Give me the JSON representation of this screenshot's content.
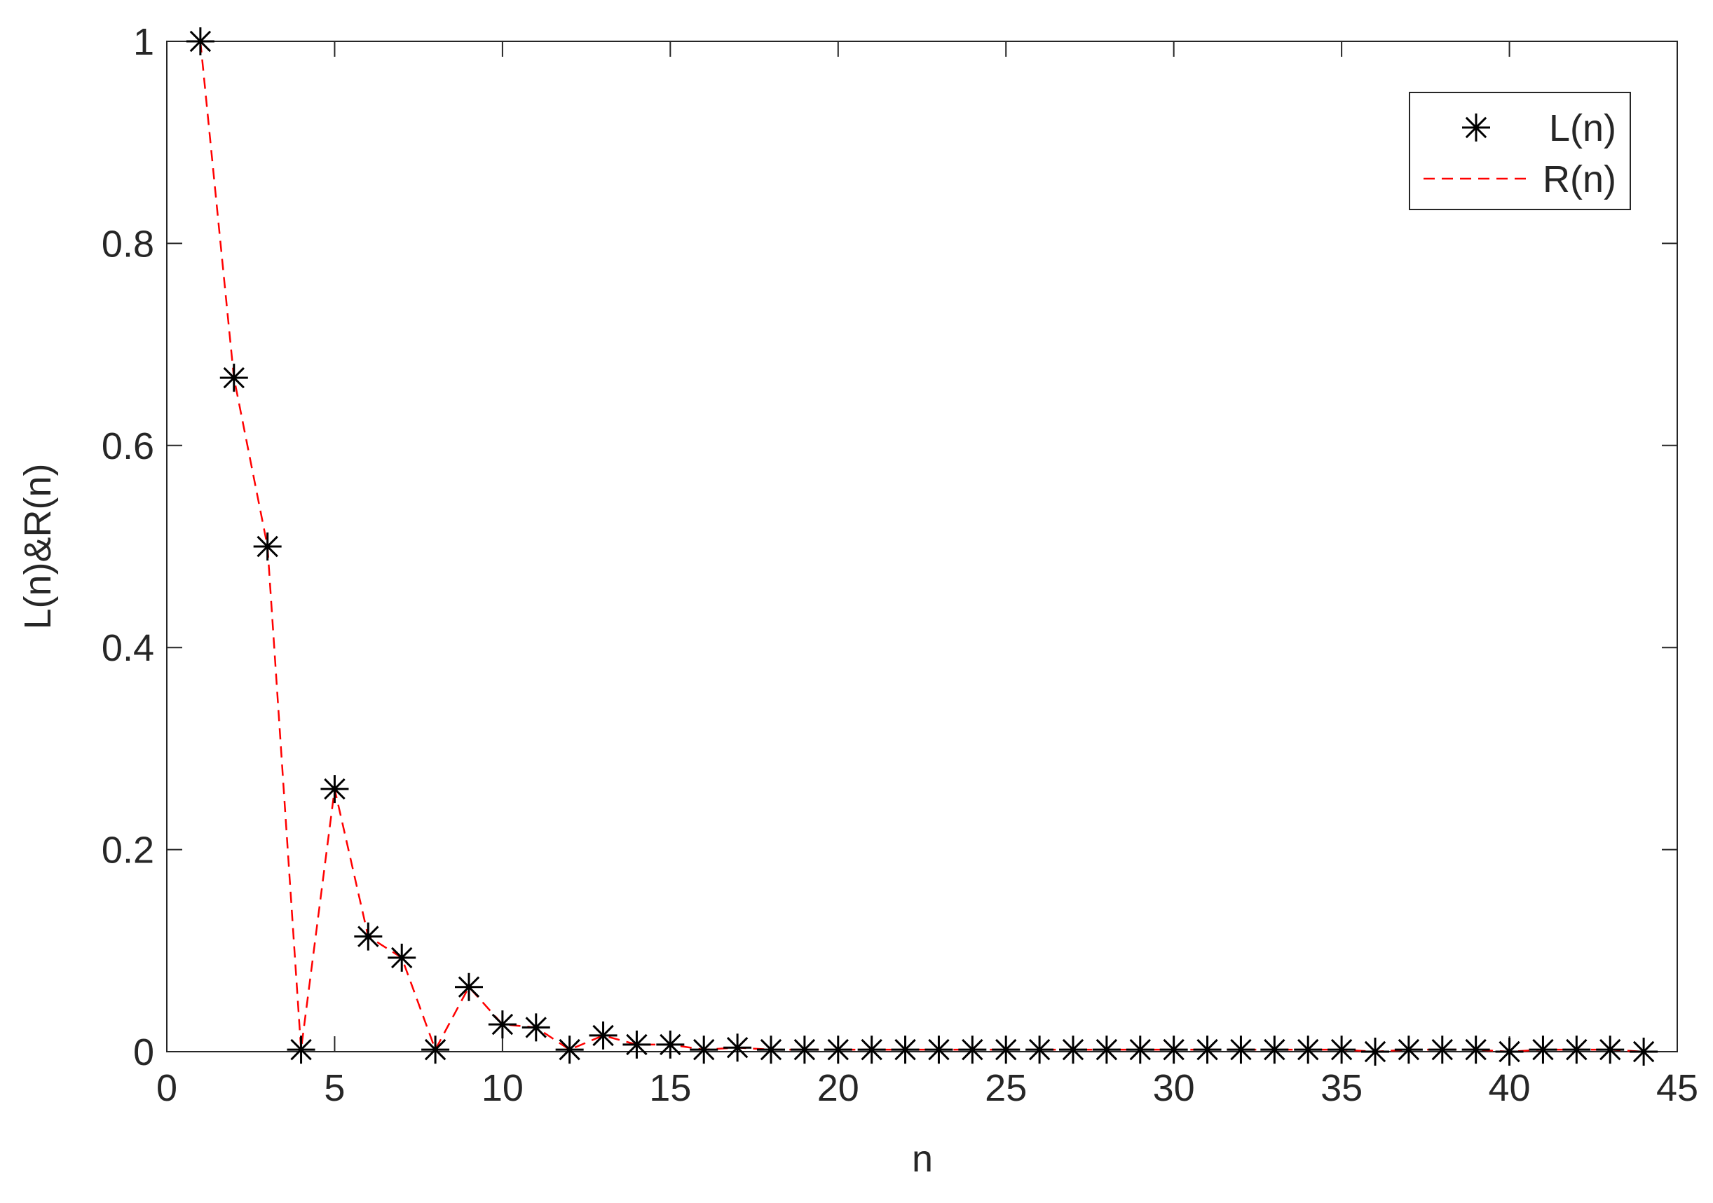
{
  "chart_data": {
    "type": "line",
    "xlabel": "n",
    "ylabel": "L(n)&R(n)",
    "x": [
      1,
      2,
      3,
      4,
      5,
      6,
      7,
      8,
      9,
      10,
      11,
      12,
      13,
      14,
      15,
      16,
      17,
      18,
      19,
      20,
      21,
      22,
      23,
      24,
      25,
      26,
      27,
      28,
      29,
      30,
      31,
      32,
      33,
      34,
      35,
      36,
      37,
      38,
      39,
      40,
      41,
      42,
      43,
      44
    ],
    "series": [
      {
        "name": "L(n)",
        "color": "#000000",
        "style": "markers",
        "values": [
          1.0,
          0.667,
          0.5,
          0.002,
          0.26,
          0.114,
          0.093,
          0.002,
          0.064,
          0.027,
          0.024,
          0.002,
          0.016,
          0.007,
          0.007,
          0.002,
          0.004,
          0.002,
          0.002,
          0.002,
          0.002,
          0.002,
          0.002,
          0.002,
          0.002,
          0.002,
          0.002,
          0.002,
          0.002,
          0.002,
          0.002,
          0.002,
          0.002,
          0.002,
          0.002,
          0.0,
          0.002,
          0.002,
          0.002,
          0.0,
          0.002,
          0.002,
          0.002,
          0.0
        ]
      },
      {
        "name": "R(n)",
        "color": "#ff0000",
        "style": "dashed-line",
        "values": [
          1.0,
          0.667,
          0.5,
          0.002,
          0.26,
          0.114,
          0.093,
          0.002,
          0.064,
          0.027,
          0.024,
          0.002,
          0.016,
          0.007,
          0.007,
          0.002,
          0.004,
          0.002,
          0.002,
          0.002,
          0.002,
          0.002,
          0.002,
          0.002,
          0.002,
          0.002,
          0.002,
          0.002,
          0.002,
          0.002,
          0.002,
          0.002,
          0.002,
          0.002,
          0.002,
          0.0,
          0.002,
          0.002,
          0.002,
          0.0,
          0.002,
          0.002,
          0.002,
          0.0
        ]
      }
    ],
    "xlim": [
      0,
      45
    ],
    "xticks": [
      0,
      5,
      10,
      15,
      20,
      25,
      30,
      35,
      40,
      45
    ],
    "ylim": [
      0,
      1
    ],
    "yticks": [
      0,
      0.2,
      0.4,
      0.6,
      0.8,
      1
    ],
    "grid": false,
    "legend": "upper right"
  }
}
